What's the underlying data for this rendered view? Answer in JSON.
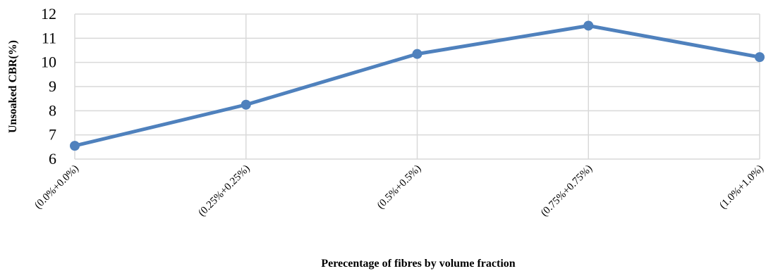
{
  "chart_data": {
    "type": "line",
    "categories": [
      "(0.0%+0.0%)",
      "(0.25%+0.25%)",
      "(0.5%+0.5%)",
      "(0.75%+0.75%)",
      "(1.0%+1.0%)"
    ],
    "series": [
      {
        "values": [
          6.55,
          8.25,
          10.35,
          11.52,
          10.22
        ],
        "color": "#4f81bd"
      }
    ],
    "xlabel": "Perecentage of fibres by volume fraction",
    "ylabel": "Unsoaked CBR(%)",
    "ylim": [
      6,
      12
    ],
    "yticks": [
      "6",
      "7",
      "8",
      "9",
      "10",
      "11",
      "12"
    ],
    "grid": true,
    "legend": "none",
    "marker": "circle"
  }
}
